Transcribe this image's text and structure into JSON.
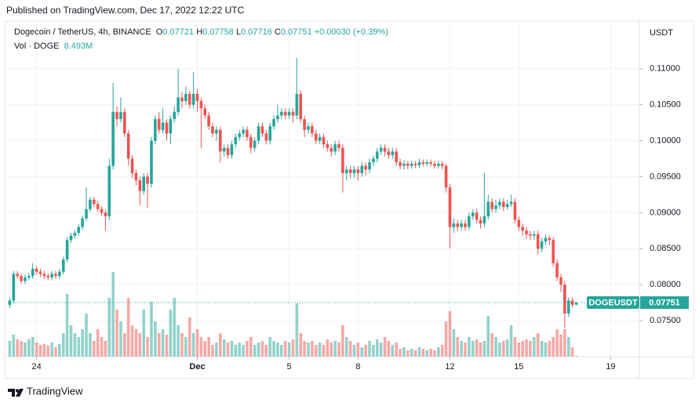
{
  "chart_data": {
    "type": "candlestick",
    "published": "Published on TradingView.com, Dec 17, 2022 12:22 UTC",
    "title": "Dogecoin / TetherUS, 4h, BINANCE",
    "ohlc_labels": [
      "O",
      "H",
      "L",
      "C"
    ],
    "change": "+0.00030 (+0.39%)",
    "volume_title": "Vol · DOGE",
    "volume_legend": "8.493M",
    "symbol": "DOGEUSDT",
    "currency": "USDT",
    "footer": "TradingView",
    "up_color": "#26a69a",
    "down_color": "#ef5350",
    "grid": true,
    "ylim": [
      0.07,
      0.1165
    ],
    "yticks": [
      {
        "value": 0.075,
        "label": "0.07500"
      },
      {
        "value": 0.08,
        "label": "0.08000"
      },
      {
        "value": 0.085,
        "label": "0.08500"
      },
      {
        "value": 0.09,
        "label": "0.09000"
      },
      {
        "value": 0.095,
        "label": "0.09500"
      },
      {
        "value": 0.1,
        "label": "0.10000"
      },
      {
        "value": 0.105,
        "label": "0.10500"
      },
      {
        "value": 0.11,
        "label": "0.11000"
      }
    ],
    "xlim": [
      22.75,
      50.25
    ],
    "xticks": [
      24,
      {
        "value": 31,
        "label": "Dec"
      },
      {
        "value": 35,
        "label": "5"
      },
      {
        "value": 38,
        "label": "8"
      },
      {
        "value": 42,
        "label": "12"
      },
      {
        "value": 45,
        "label": "15"
      },
      {
        "value": 49,
        "label": "19"
      }
    ],
    "x": [
      22.833,
      23,
      23.167,
      23.333,
      23.5,
      23.667,
      23.833,
      24,
      24.167,
      24.333,
      24.5,
      24.667,
      24.833,
      25,
      25.167,
      25.333,
      25.5,
      25.667,
      25.833,
      26,
      26.167,
      26.333,
      26.5,
      26.667,
      26.833,
      27,
      27.167,
      27.333,
      27.5,
      27.667,
      27.833,
      28,
      28.167,
      28.333,
      28.5,
      28.667,
      28.833,
      29,
      29.167,
      29.333,
      29.5,
      29.667,
      29.833,
      30,
      30.167,
      30.333,
      30.5,
      30.667,
      30.833,
      31,
      31.167,
      31.333,
      31.5,
      31.667,
      31.833,
      32,
      32.167,
      32.333,
      32.5,
      32.667,
      32.833,
      33,
      33.167,
      33.333,
      33.5,
      33.667,
      33.833,
      34,
      34.167,
      34.333,
      34.5,
      34.667,
      34.833,
      35,
      35.167,
      35.333,
      35.5,
      35.667,
      35.833,
      36,
      36.167,
      36.333,
      36.5,
      36.667,
      36.833,
      37,
      37.167,
      37.333,
      37.5,
      37.667,
      37.833,
      38,
      38.167,
      38.333,
      38.5,
      38.667,
      38.833,
      39,
      39.167,
      39.333,
      39.5,
      39.667,
      39.833,
      40,
      40.167,
      40.333,
      40.5,
      40.667,
      40.833,
      41,
      41.167,
      41.333,
      41.5,
      41.667,
      41.833,
      42,
      42.167,
      42.333,
      42.5,
      42.667,
      42.833,
      43,
      43.167,
      43.333,
      43.5,
      43.667,
      43.833,
      44,
      44.167,
      44.333,
      44.5,
      44.667,
      44.833,
      45,
      45.167,
      45.333,
      45.5,
      45.667,
      45.833,
      46,
      46.167,
      46.333,
      46.5,
      46.667,
      46.833,
      47,
      47.167,
      47.333,
      47.5
    ],
    "open": [
      0.0772,
      0.0778,
      0.0815,
      0.0812,
      0.0805,
      0.081,
      0.0812,
      0.0822,
      0.0818,
      0.0815,
      0.0812,
      0.081,
      0.0815,
      0.0812,
      0.0818,
      0.0835,
      0.0862,
      0.0868,
      0.0872,
      0.088,
      0.0892,
      0.0905,
      0.0918,
      0.0912,
      0.0905,
      0.09,
      0.0895,
      0.0965,
      0.104,
      0.103,
      0.104,
      0.101,
      0.0975,
      0.0955,
      0.0945,
      0.093,
      0.095,
      0.094,
      0.1,
      0.103,
      0.1015,
      0.1025,
      0.101,
      0.103,
      0.104,
      0.106,
      0.1055,
      0.1065,
      0.105,
      0.1065,
      0.1055,
      0.1045,
      0.1035,
      0.102,
      0.101,
      0.1015,
      0.0985,
      0.099,
      0.098,
      0.0995,
      0.1005,
      0.101,
      0.1015,
      0.1005,
      0.099,
      0.1,
      0.102,
      0.101,
      0.1,
      0.102,
      0.103,
      0.1035,
      0.104,
      0.1035,
      0.104,
      0.1035,
      0.1065,
      0.103,
      0.1015,
      0.102,
      0.101,
      0.1,
      0.1005,
      0.0995,
      0.099,
      0.0985,
      0.0995,
      0.099,
      0.0955,
      0.096,
      0.0955,
      0.096,
      0.0955,
      0.0965,
      0.096,
      0.097,
      0.0975,
      0.0985,
      0.099,
      0.0985,
      0.098,
      0.0985,
      0.097,
      0.0965,
      0.0968,
      0.0965,
      0.0968,
      0.0966,
      0.097,
      0.0968,
      0.097,
      0.0968,
      0.0965,
      0.0968,
      0.0965,
      0.0935,
      0.088,
      0.0885,
      0.088,
      0.0885,
      0.088,
      0.0895,
      0.09,
      0.089,
      0.0885,
      0.0895,
      0.0915,
      0.0905,
      0.091,
      0.0915,
      0.0908,
      0.0912,
      0.0915,
      0.089,
      0.088,
      0.0875,
      0.087,
      0.0868,
      0.087,
      0.085,
      0.086,
      0.0865,
      0.0862,
      0.083,
      0.081,
      0.08,
      0.076,
      0.0778,
      0.07721
    ],
    "high": [
      0.0782,
      0.0819,
      0.0819,
      0.0816,
      0.0814,
      0.0816,
      0.083,
      0.0826,
      0.0822,
      0.0819,
      0.0816,
      0.0819,
      0.0819,
      0.0822,
      0.0839,
      0.0866,
      0.0872,
      0.0876,
      0.0884,
      0.0896,
      0.0935,
      0.0922,
      0.0922,
      0.0916,
      0.0909,
      0.0904,
      0.0975,
      0.108,
      0.1048,
      0.106,
      0.1045,
      0.1015,
      0.098,
      0.096,
      0.095,
      0.0955,
      0.0955,
      0.1005,
      0.1035,
      0.104,
      0.1045,
      0.103,
      0.1035,
      0.1048,
      0.11,
      0.1068,
      0.1075,
      0.107,
      0.1095,
      0.1072,
      0.106,
      0.105,
      0.104,
      0.1025,
      0.102,
      0.102,
      0.0995,
      0.0995,
      0.1,
      0.101,
      0.1015,
      0.102,
      0.102,
      0.101,
      0.1005,
      0.1025,
      0.1025,
      0.1015,
      0.1025,
      0.1035,
      0.105,
      0.1045,
      0.1045,
      0.1045,
      0.1045,
      0.1115,
      0.107,
      0.1035,
      0.1025,
      0.1025,
      0.1015,
      0.101,
      0.101,
      0.1,
      0.0995,
      0.1,
      0.1,
      0.0995,
      0.0965,
      0.0965,
      0.0965,
      0.0965,
      0.097,
      0.097,
      0.0975,
      0.098,
      0.099,
      0.0995,
      0.0995,
      0.099,
      0.099,
      0.099,
      0.0975,
      0.0973,
      0.0972,
      0.0972,
      0.0972,
      0.0975,
      0.0974,
      0.0974,
      0.0974,
      0.0972,
      0.0972,
      0.0972,
      0.0968,
      0.094,
      0.0892,
      0.089,
      0.089,
      0.089,
      0.09,
      0.0905,
      0.0905,
      0.0895,
      0.0955,
      0.0925,
      0.092,
      0.0918,
      0.092,
      0.092,
      0.0918,
      0.0925,
      0.092,
      0.0895,
      0.0885,
      0.088,
      0.0875,
      0.0875,
      0.0875,
      0.0865,
      0.087,
      0.0868,
      0.0866,
      0.0835,
      0.0815,
      0.0805,
      0.0782,
      0.0782,
      0.07758
    ],
    "low": [
      0.0768,
      0.0774,
      0.0808,
      0.0801,
      0.0801,
      0.0806,
      0.0808,
      0.0814,
      0.0811,
      0.0808,
      0.0806,
      0.0806,
      0.0808,
      0.0808,
      0.0814,
      0.0831,
      0.0858,
      0.0864,
      0.0868,
      0.0876,
      0.0888,
      0.0901,
      0.0908,
      0.0901,
      0.0896,
      0.0875,
      0.089,
      0.096,
      0.102,
      0.1025,
      0.1005,
      0.0965,
      0.0948,
      0.0938,
      0.091,
      0.0925,
      0.0907,
      0.0935,
      0.0995,
      0.101,
      0.101,
      0.1,
      0.0995,
      0.1025,
      0.1035,
      0.1045,
      0.105,
      0.1045,
      0.1045,
      0.104,
      0.099,
      0.103,
      0.1015,
      0.1005,
      0.1,
      0.097,
      0.0978,
      0.0975,
      0.0975,
      0.099,
      0.1,
      0.1005,
      0.1,
      0.0982,
      0.0985,
      0.0995,
      0.1005,
      0.0995,
      0.0995,
      0.1015,
      0.1025,
      0.103,
      0.103,
      0.103,
      0.1025,
      0.103,
      0.1025,
      0.1005,
      0.101,
      0.1005,
      0.0995,
      0.0995,
      0.099,
      0.0985,
      0.0978,
      0.098,
      0.0985,
      0.0928,
      0.0945,
      0.0948,
      0.0948,
      0.0945,
      0.095,
      0.0952,
      0.0955,
      0.0965,
      0.097,
      0.098,
      0.0978,
      0.0975,
      0.0975,
      0.0965,
      0.096,
      0.096,
      0.096,
      0.0961,
      0.0962,
      0.0962,
      0.0964,
      0.0964,
      0.0964,
      0.0961,
      0.0961,
      0.096,
      0.0928,
      0.085,
      0.0872,
      0.0874,
      0.0875,
      0.0875,
      0.0876,
      0.089,
      0.0885,
      0.0878,
      0.088,
      0.089,
      0.09,
      0.09,
      0.0905,
      0.0902,
      0.0904,
      0.0908,
      0.0885,
      0.0874,
      0.0868,
      0.0864,
      0.0862,
      0.0862,
      0.0842,
      0.0845,
      0.0855,
      0.0855,
      0.0825,
      0.0805,
      0.079,
      0.074,
      0.0755,
      0.0768,
      0.07716
    ],
    "close": [
      0.0778,
      0.0815,
      0.0812,
      0.0805,
      0.081,
      0.0812,
      0.0822,
      0.0818,
      0.0815,
      0.0812,
      0.081,
      0.0815,
      0.0812,
      0.0818,
      0.0835,
      0.0862,
      0.0868,
      0.0872,
      0.088,
      0.0892,
      0.0905,
      0.0918,
      0.0912,
      0.0905,
      0.09,
      0.0895,
      0.0965,
      0.104,
      0.103,
      0.104,
      0.101,
      0.0975,
      0.0955,
      0.0945,
      0.093,
      0.095,
      0.094,
      0.1,
      0.103,
      0.1015,
      0.1025,
      0.101,
      0.103,
      0.104,
      0.106,
      0.1055,
      0.1065,
      0.105,
      0.1065,
      0.1055,
      0.1045,
      0.1035,
      0.102,
      0.101,
      0.1015,
      0.0985,
      0.099,
      0.098,
      0.0995,
      0.1005,
      0.101,
      0.1015,
      0.1005,
      0.099,
      0.1,
      0.102,
      0.101,
      0.1,
      0.102,
      0.103,
      0.1035,
      0.104,
      0.1035,
      0.104,
      0.1035,
      0.1065,
      0.103,
      0.1015,
      0.102,
      0.101,
      0.1,
      0.1005,
      0.0995,
      0.099,
      0.0985,
      0.0995,
      0.099,
      0.0955,
      0.096,
      0.0955,
      0.096,
      0.0955,
      0.0965,
      0.096,
      0.097,
      0.0975,
      0.0985,
      0.099,
      0.0985,
      0.098,
      0.0985,
      0.097,
      0.0965,
      0.0968,
      0.0965,
      0.0968,
      0.0966,
      0.097,
      0.0968,
      0.097,
      0.0968,
      0.0965,
      0.0968,
      0.0965,
      0.0935,
      0.088,
      0.0885,
      0.088,
      0.0885,
      0.088,
      0.0895,
      0.09,
      0.089,
      0.0885,
      0.0895,
      0.0915,
      0.0905,
      0.091,
      0.0915,
      0.0908,
      0.0912,
      0.0915,
      0.089,
      0.088,
      0.0875,
      0.087,
      0.0868,
      0.087,
      0.085,
      0.086,
      0.0865,
      0.0862,
      0.083,
      0.081,
      0.08,
      0.076,
      0.0778,
      0.07721,
      0.07751
    ],
    "volume": [
      200000000.0,
      280000000.0,
      220000000.0,
      200000000.0,
      180000000.0,
      220000000.0,
      250000000.0,
      180000000.0,
      150000000.0,
      160000000.0,
      140000000.0,
      180000000.0,
      120000000.0,
      160000000.0,
      300000000.0,
      800000000.0,
      400000000.0,
      300000000.0,
      250000000.0,
      350000000.0,
      550000000.0,
      300000000.0,
      200000000.0,
      350000000.0,
      250000000.0,
      200000000.0,
      750000000.0,
      1080000000.0,
      600000000.0,
      450000000.0,
      300000000.0,
      750000000.0,
      400000000.0,
      350000000.0,
      300000000.0,
      600000000.0,
      250000000.0,
      700000000.0,
      450000000.0,
      300000000.0,
      350000000.0,
      280000000.0,
      600000000.0,
      750000000.0,
      400000000.0,
      300000000.0,
      250000000.0,
      500000000.0,
      300000000.0,
      350000000.0,
      250000000.0,
      200000000.0,
      250000000.0,
      150000000.0,
      180000000.0,
      300000000.0,
      220000000.0,
      180000000.0,
      200000000.0,
      150000000.0,
      180000000.0,
      150000000.0,
      200000000.0,
      250000000.0,
      150000000.0,
      180000000.0,
      200000000.0,
      150000000.0,
      250000000.0,
      200000000.0,
      180000000.0,
      150000000.0,
      200000000.0,
      180000000.0,
      220000000.0,
      680000000.0,
      300000000.0,
      200000000.0,
      180000000.0,
      200000000.0,
      150000000.0,
      180000000.0,
      150000000.0,
      220000000.0,
      180000000.0,
      200000000.0,
      180000000.0,
      400000000.0,
      250000000.0,
      200000000.0,
      150000000.0,
      180000000.0,
      120000000.0,
      150000000.0,
      200000000.0,
      150000000.0,
      220000000.0,
      180000000.0,
      250000000.0,
      200000000.0,
      150000000.0,
      180000000.0,
      100000000.0,
      120000000.0,
      80000000.0,
      100000000.0,
      80000000.0,
      120000000.0,
      100000000.0,
      80000000.0,
      100000000.0,
      80000000.0,
      120000000.0,
      150000000.0,
      450000000.0,
      580000000.0,
      350000000.0,
      250000000.0,
      200000000.0,
      180000000.0,
      250000000.0,
      200000000.0,
      220000000.0,
      180000000.0,
      200000000.0,
      520000000.0,
      300000000.0,
      250000000.0,
      180000000.0,
      200000000.0,
      220000000.0,
      400000000.0,
      250000000.0,
      180000000.0,
      200000000.0,
      220000000.0,
      200000000.0,
      250000000.0,
      300000000.0,
      200000000.0,
      180000000.0,
      200000000.0,
      250000000.0,
      350000000.0,
      280000000.0,
      350000000.0,
      250000000.0,
      120000000.0,
      8493000
    ]
  }
}
